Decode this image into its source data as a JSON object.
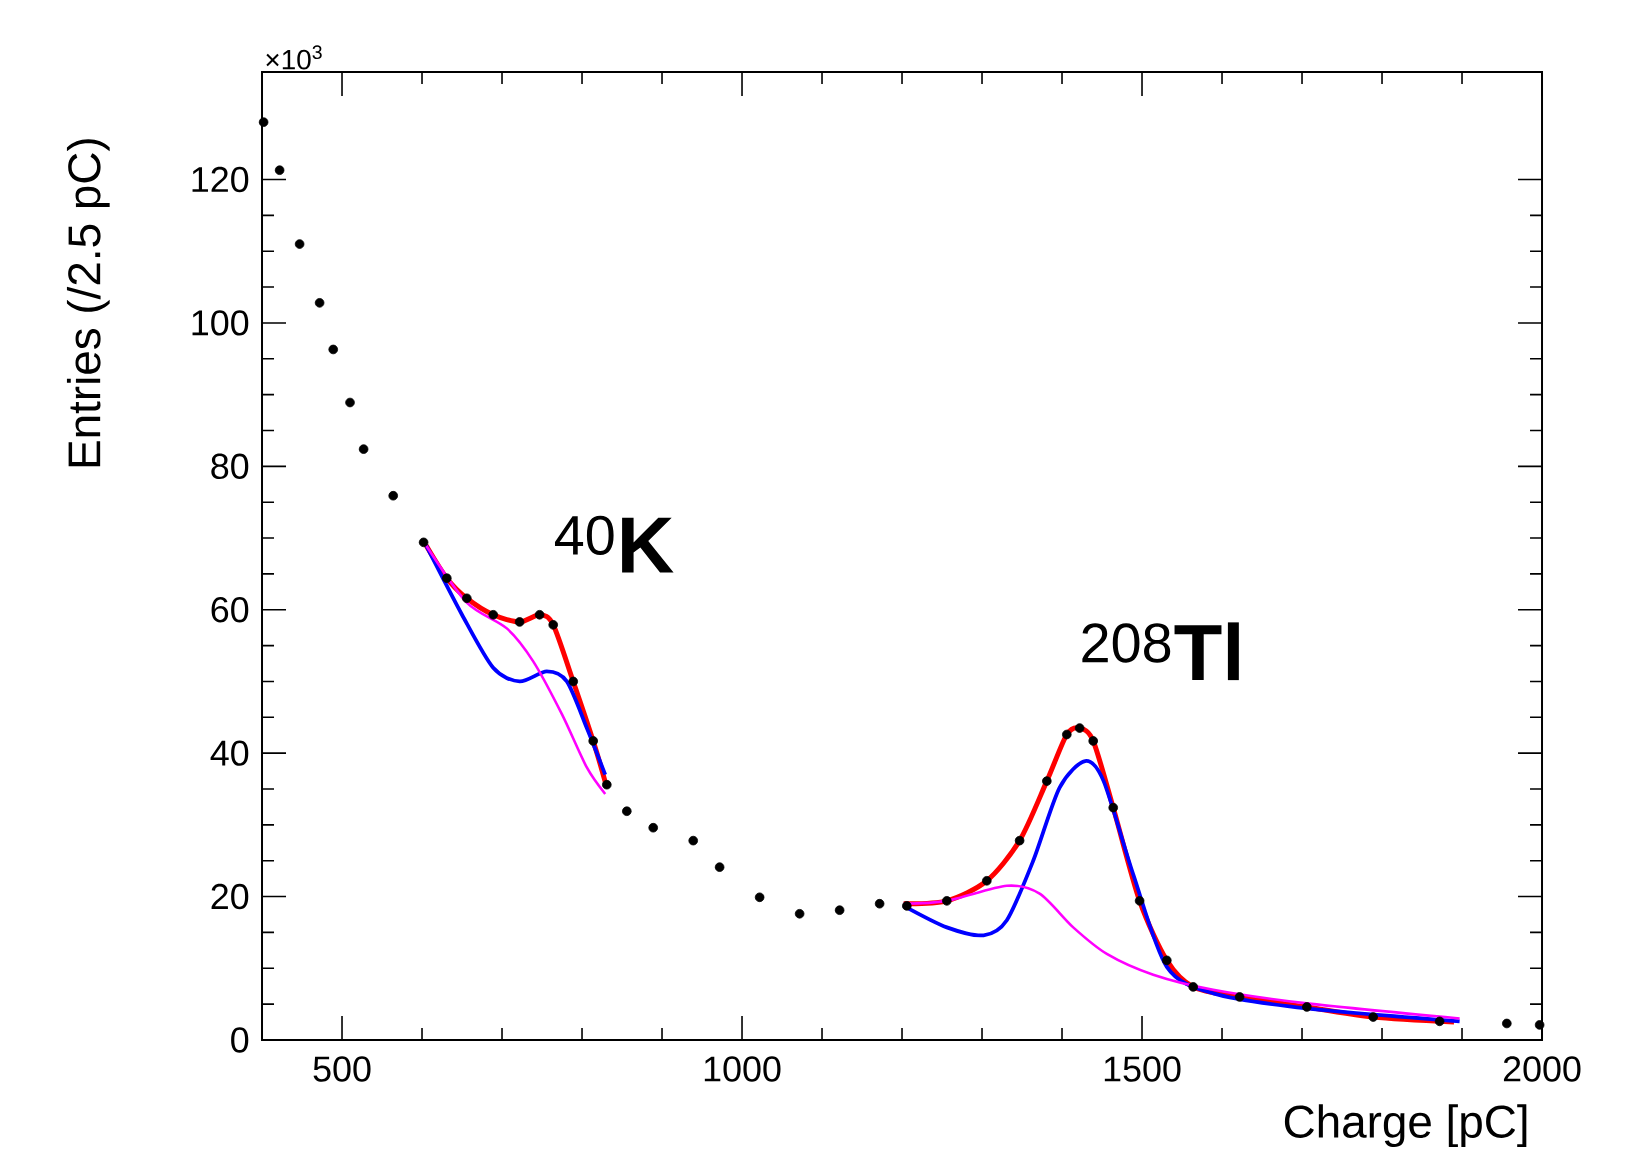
{
  "chart_data": {
    "type": "scatter",
    "xlabel": "Charge [pC]",
    "ylabel": "Entries (/2.5 pC)",
    "xlim": [
      400,
      2000
    ],
    "xticks": [
      500,
      1000,
      1500,
      2000
    ],
    "ylim": [
      0,
      135
    ],
    "yticks": [
      0,
      20,
      40,
      60,
      80,
      100,
      120
    ],
    "annotations": [
      "×10$^{3}$",
      {
        "text": "$^{40}$**K**",
        "x": 740,
        "y": 59
      },
      {
        "text": "$^{208}$**Tl**",
        "x": 1425,
        "y": 44
      }
    ],
    "series": [
      {
        "type": "scatter",
        "marker": "circle",
        "color": "#000000",
        "x": [
          402,
          422,
          447,
          472,
          489,
          510,
          527,
          564,
          602,
          631,
          656,
          689,
          722,
          747,
          764,
          789,
          814,
          831,
          856,
          889,
          939,
          972,
          1022,
          1072,
          1122,
          1172,
          1206,
          1256,
          1306,
          1347,
          1381,
          1406,
          1422,
          1439,
          1464,
          1497,
          1531,
          1564,
          1622,
          1706,
          1789,
          1872,
          1956,
          1997
        ],
        "values": [
          128,
          121.3,
          111,
          102.8,
          96.3,
          88.9,
          82.4,
          75.9,
          69.4,
          64.4,
          61.6,
          59.3,
          58.3,
          59.3,
          57.9,
          50,
          41.7,
          35.6,
          31.9,
          29.6,
          27.8,
          24.1,
          19.9,
          17.6,
          18.1,
          19,
          18.7,
          19.4,
          22.2,
          27.8,
          36.1,
          42.6,
          43.5,
          41.7,
          32.4,
          19.4,
          11.1,
          7.4,
          6,
          4.6,
          3.2,
          2.6,
          2.3,
          2.1
        ]
      },
      {
        "type": "line",
        "color": "#ff0000",
        "x": [
          605,
          631,
          656,
          689,
          722,
          747,
          764,
          789,
          814,
          829
        ],
        "values": [
          69,
          64.4,
          61.6,
          59.3,
          58.3,
          59.3,
          57.9,
          50,
          41.7,
          36
        ]
      },
      {
        "type": "line",
        "color": "#ff0000",
        "x": [
          1202,
          1256,
          1306,
          1347,
          1381,
          1406,
          1422,
          1439,
          1464,
          1497,
          1531,
          1564,
          1622,
          1706,
          1789,
          1890
        ],
        "values": [
          19,
          19.4,
          22.2,
          27.8,
          36.1,
          42.6,
          43.5,
          41.7,
          32.4,
          19.4,
          11.1,
          7.4,
          6,
          4.6,
          3.2,
          2.5
        ]
      },
      {
        "type": "line",
        "color": "#0000ff",
        "x": [
          605,
          650,
          689,
          722,
          756,
          781,
          806,
          829
        ],
        "values": [
          69,
          59.3,
          51.9,
          50,
          51.4,
          50,
          43.5,
          37
        ]
      },
      {
        "type": "line",
        "color": "#0000ff",
        "x": [
          1202,
          1256,
          1302,
          1331,
          1364,
          1397,
          1429,
          1452,
          1489,
          1531,
          1589,
          1706,
          1897
        ],
        "values": [
          18.7,
          15.7,
          14.6,
          16.7,
          25,
          35.2,
          38.9,
          36.1,
          23.1,
          10.2,
          6.5,
          4.4,
          2.6
        ]
      },
      {
        "type": "line",
        "color": "#ff00ff",
        "x": [
          605,
          656,
          706,
          739,
          775,
          806,
          829
        ],
        "values": [
          69,
          61,
          57.4,
          52.8,
          45.4,
          38,
          34.3
        ]
      },
      {
        "type": "line",
        "color": "#ff00ff",
        "x": [
          1202,
          1256,
          1331,
          1372,
          1414,
          1456,
          1514,
          1589,
          1706,
          1897
        ],
        "values": [
          19,
          19.4,
          21.5,
          20.4,
          15.7,
          12,
          9.1,
          7,
          5.1,
          3
        ]
      }
    ]
  }
}
